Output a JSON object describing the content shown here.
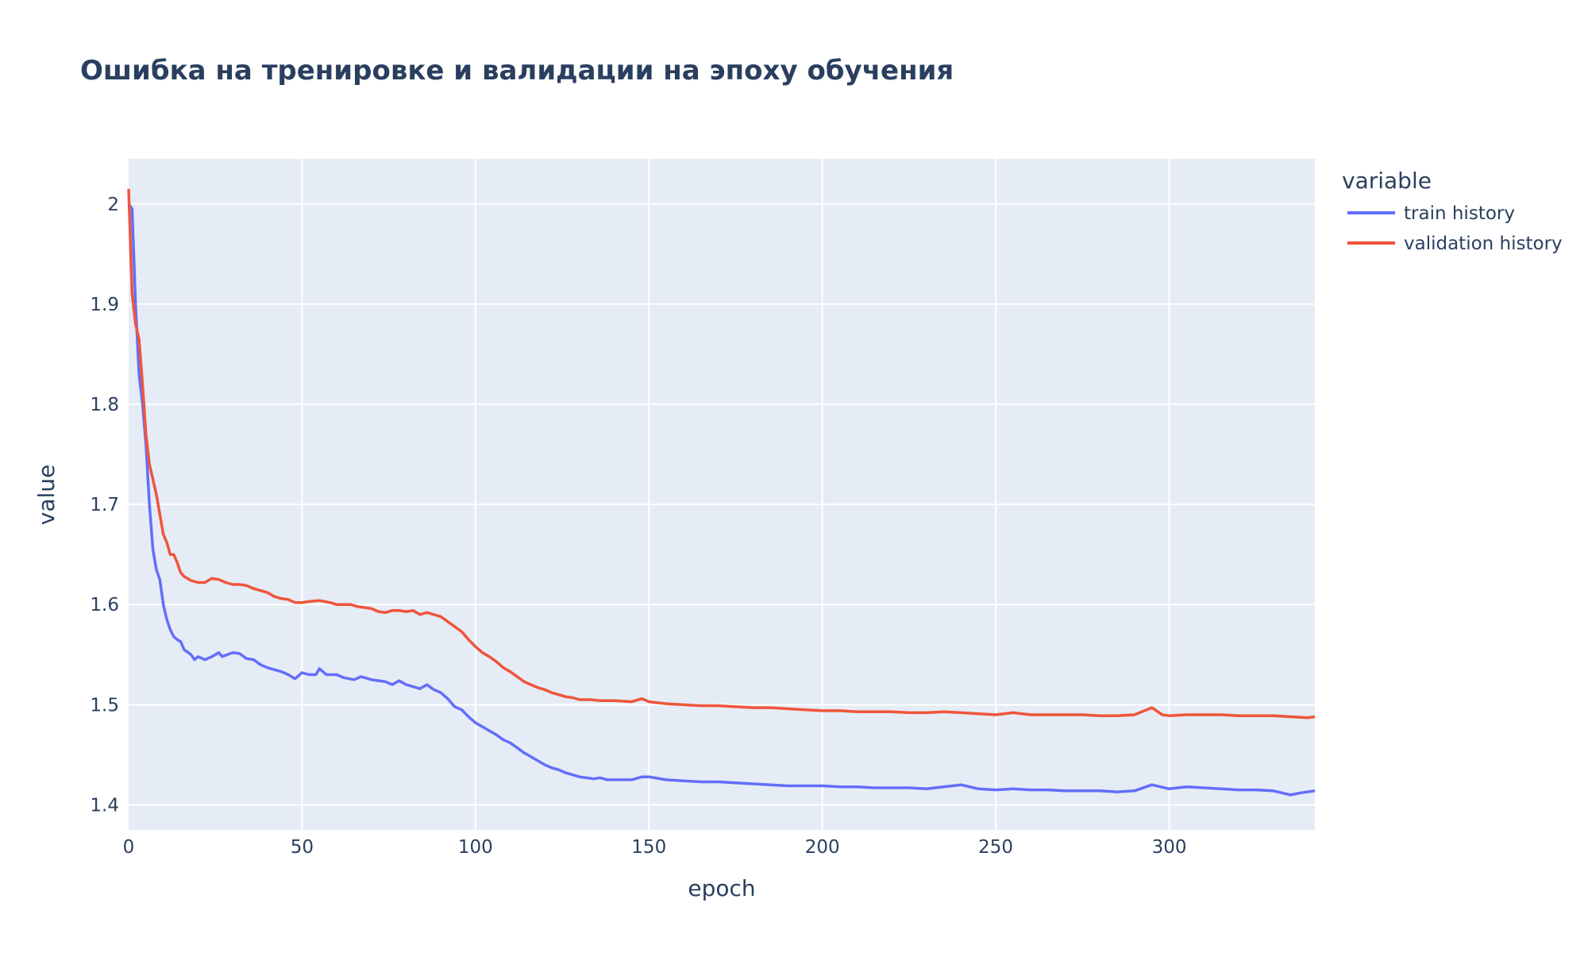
{
  "chart_data": {
    "type": "line",
    "title": "Ошибка на тренировке и валидации на эпоху обучения",
    "xlabel": "epoch",
    "ylabel": "value",
    "xlim": [
      0,
      342
    ],
    "ylim": [
      1.375,
      2.045
    ],
    "x_ticks": [
      0,
      50,
      100,
      150,
      200,
      250,
      300
    ],
    "y_ticks": [
      1.4,
      1.5,
      1.6,
      1.7,
      1.8,
      1.9,
      2
    ],
    "grid": true,
    "legend_title": "variable",
    "legend_position": "top-right, outside plot",
    "colors": {
      "plot_bg": "#e5ecf6",
      "grid": "#ffffff",
      "text": "#2a3f5f"
    },
    "series": [
      {
        "name": "train history",
        "color": "#636efa",
        "points": [
          [
            0,
            2.0
          ],
          [
            1,
            1.995
          ],
          [
            2,
            1.9
          ],
          [
            3,
            1.83
          ],
          [
            4,
            1.8
          ],
          [
            5,
            1.76
          ],
          [
            6,
            1.7
          ],
          [
            7,
            1.655
          ],
          [
            8,
            1.635
          ],
          [
            9,
            1.625
          ],
          [
            10,
            1.6
          ],
          [
            11,
            1.585
          ],
          [
            12,
            1.575
          ],
          [
            13,
            1.568
          ],
          [
            14,
            1.565
          ],
          [
            15,
            1.563
          ],
          [
            16,
            1.555
          ],
          [
            18,
            1.55
          ],
          [
            19,
            1.545
          ],
          [
            20,
            1.548
          ],
          [
            22,
            1.545
          ],
          [
            24,
            1.548
          ],
          [
            26,
            1.552
          ],
          [
            27,
            1.548
          ],
          [
            30,
            1.552
          ],
          [
            32,
            1.551
          ],
          [
            34,
            1.546
          ],
          [
            36,
            1.545
          ],
          [
            38,
            1.54
          ],
          [
            40,
            1.537
          ],
          [
            42,
            1.535
          ],
          [
            44,
            1.533
          ],
          [
            46,
            1.53
          ],
          [
            48,
            1.526
          ],
          [
            50,
            1.532
          ],
          [
            52,
            1.53
          ],
          [
            54,
            1.53
          ],
          [
            55,
            1.536
          ],
          [
            57,
            1.53
          ],
          [
            60,
            1.53
          ],
          [
            62,
            1.527
          ],
          [
            65,
            1.525
          ],
          [
            67,
            1.528
          ],
          [
            70,
            1.525
          ],
          [
            72,
            1.524
          ],
          [
            74,
            1.523
          ],
          [
            76,
            1.52
          ],
          [
            78,
            1.524
          ],
          [
            80,
            1.52
          ],
          [
            82,
            1.518
          ],
          [
            84,
            1.516
          ],
          [
            86,
            1.52
          ],
          [
            88,
            1.515
          ],
          [
            90,
            1.512
          ],
          [
            92,
            1.506
          ],
          [
            94,
            1.498
          ],
          [
            96,
            1.495
          ],
          [
            98,
            1.488
          ],
          [
            100,
            1.482
          ],
          [
            102,
            1.478
          ],
          [
            104,
            1.474
          ],
          [
            106,
            1.47
          ],
          [
            108,
            1.465
          ],
          [
            110,
            1.462
          ],
          [
            112,
            1.457
          ],
          [
            114,
            1.452
          ],
          [
            116,
            1.448
          ],
          [
            118,
            1.444
          ],
          [
            120,
            1.44
          ],
          [
            122,
            1.437
          ],
          [
            124,
            1.435
          ],
          [
            126,
            1.432
          ],
          [
            128,
            1.43
          ],
          [
            130,
            1.428
          ],
          [
            132,
            1.427
          ],
          [
            134,
            1.426
          ],
          [
            136,
            1.427
          ],
          [
            138,
            1.425
          ],
          [
            140,
            1.425
          ],
          [
            145,
            1.425
          ],
          [
            148,
            1.428
          ],
          [
            150,
            1.428
          ],
          [
            155,
            1.425
          ],
          [
            160,
            1.424
          ],
          [
            165,
            1.423
          ],
          [
            170,
            1.423
          ],
          [
            175,
            1.422
          ],
          [
            180,
            1.421
          ],
          [
            185,
            1.42
          ],
          [
            190,
            1.419
          ],
          [
            195,
            1.419
          ],
          [
            200,
            1.419
          ],
          [
            205,
            1.418
          ],
          [
            210,
            1.418
          ],
          [
            215,
            1.417
          ],
          [
            220,
            1.417
          ],
          [
            225,
            1.417
          ],
          [
            230,
            1.416
          ],
          [
            235,
            1.418
          ],
          [
            240,
            1.42
          ],
          [
            245,
            1.416
          ],
          [
            250,
            1.415
          ],
          [
            255,
            1.416
          ],
          [
            260,
            1.415
          ],
          [
            265,
            1.415
          ],
          [
            270,
            1.414
          ],
          [
            275,
            1.414
          ],
          [
            280,
            1.414
          ],
          [
            285,
            1.413
          ],
          [
            290,
            1.414
          ],
          [
            295,
            1.42
          ],
          [
            300,
            1.416
          ],
          [
            305,
            1.418
          ],
          [
            310,
            1.417
          ],
          [
            315,
            1.416
          ],
          [
            320,
            1.415
          ],
          [
            325,
            1.415
          ],
          [
            330,
            1.414
          ],
          [
            335,
            1.41
          ],
          [
            338,
            1.412
          ],
          [
            342,
            1.414
          ]
        ]
      },
      {
        "name": "validation history",
        "color": "#ef553b",
        "points": [
          [
            0,
            2.015
          ],
          [
            1,
            1.91
          ],
          [
            2,
            1.88
          ],
          [
            3,
            1.865
          ],
          [
            4,
            1.82
          ],
          [
            5,
            1.77
          ],
          [
            6,
            1.74
          ],
          [
            7,
            1.725
          ],
          [
            8,
            1.71
          ],
          [
            9,
            1.69
          ],
          [
            10,
            1.67
          ],
          [
            11,
            1.662
          ],
          [
            12,
            1.65
          ],
          [
            13,
            1.65
          ],
          [
            14,
            1.642
          ],
          [
            15,
            1.632
          ],
          [
            16,
            1.628
          ],
          [
            18,
            1.624
          ],
          [
            20,
            1.622
          ],
          [
            22,
            1.622
          ],
          [
            24,
            1.626
          ],
          [
            26,
            1.625
          ],
          [
            28,
            1.622
          ],
          [
            30,
            1.62
          ],
          [
            32,
            1.62
          ],
          [
            34,
            1.619
          ],
          [
            36,
            1.616
          ],
          [
            38,
            1.614
          ],
          [
            40,
            1.612
          ],
          [
            42,
            1.608
          ],
          [
            44,
            1.606
          ],
          [
            46,
            1.605
          ],
          [
            48,
            1.602
          ],
          [
            50,
            1.602
          ],
          [
            52,
            1.603
          ],
          [
            55,
            1.604
          ],
          [
            58,
            1.602
          ],
          [
            60,
            1.6
          ],
          [
            62,
            1.6
          ],
          [
            64,
            1.6
          ],
          [
            66,
            1.598
          ],
          [
            68,
            1.597
          ],
          [
            70,
            1.596
          ],
          [
            72,
            1.593
          ],
          [
            74,
            1.592
          ],
          [
            76,
            1.594
          ],
          [
            78,
            1.594
          ],
          [
            80,
            1.593
          ],
          [
            82,
            1.594
          ],
          [
            84,
            1.59
          ],
          [
            86,
            1.592
          ],
          [
            88,
            1.59
          ],
          [
            90,
            1.588
          ],
          [
            92,
            1.583
          ],
          [
            94,
            1.578
          ],
          [
            96,
            1.573
          ],
          [
            98,
            1.565
          ],
          [
            100,
            1.558
          ],
          [
            102,
            1.552
          ],
          [
            104,
            1.548
          ],
          [
            106,
            1.543
          ],
          [
            108,
            1.537
          ],
          [
            110,
            1.533
          ],
          [
            112,
            1.528
          ],
          [
            114,
            1.523
          ],
          [
            116,
            1.52
          ],
          [
            118,
            1.517
          ],
          [
            120,
            1.515
          ],
          [
            122,
            1.512
          ],
          [
            124,
            1.51
          ],
          [
            126,
            1.508
          ],
          [
            128,
            1.507
          ],
          [
            130,
            1.505
          ],
          [
            133,
            1.505
          ],
          [
            136,
            1.504
          ],
          [
            140,
            1.504
          ],
          [
            145,
            1.503
          ],
          [
            148,
            1.506
          ],
          [
            150,
            1.503
          ],
          [
            155,
            1.501
          ],
          [
            160,
            1.5
          ],
          [
            165,
            1.499
          ],
          [
            170,
            1.499
          ],
          [
            175,
            1.498
          ],
          [
            180,
            1.497
          ],
          [
            185,
            1.497
          ],
          [
            190,
            1.496
          ],
          [
            195,
            1.495
          ],
          [
            200,
            1.494
          ],
          [
            205,
            1.494
          ],
          [
            210,
            1.493
          ],
          [
            215,
            1.493
          ],
          [
            220,
            1.493
          ],
          [
            225,
            1.492
          ],
          [
            230,
            1.492
          ],
          [
            235,
            1.493
          ],
          [
            240,
            1.492
          ],
          [
            245,
            1.491
          ],
          [
            250,
            1.49
          ],
          [
            255,
            1.492
          ],
          [
            260,
            1.49
          ],
          [
            265,
            1.49
          ],
          [
            270,
            1.49
          ],
          [
            275,
            1.49
          ],
          [
            280,
            1.489
          ],
          [
            285,
            1.489
          ],
          [
            290,
            1.49
          ],
          [
            295,
            1.497
          ],
          [
            298,
            1.49
          ],
          [
            300,
            1.489
          ],
          [
            305,
            1.49
          ],
          [
            310,
            1.49
          ],
          [
            315,
            1.49
          ],
          [
            320,
            1.489
          ],
          [
            325,
            1.489
          ],
          [
            330,
            1.489
          ],
          [
            335,
            1.488
          ],
          [
            340,
            1.487
          ],
          [
            342,
            1.488
          ]
        ]
      }
    ]
  }
}
